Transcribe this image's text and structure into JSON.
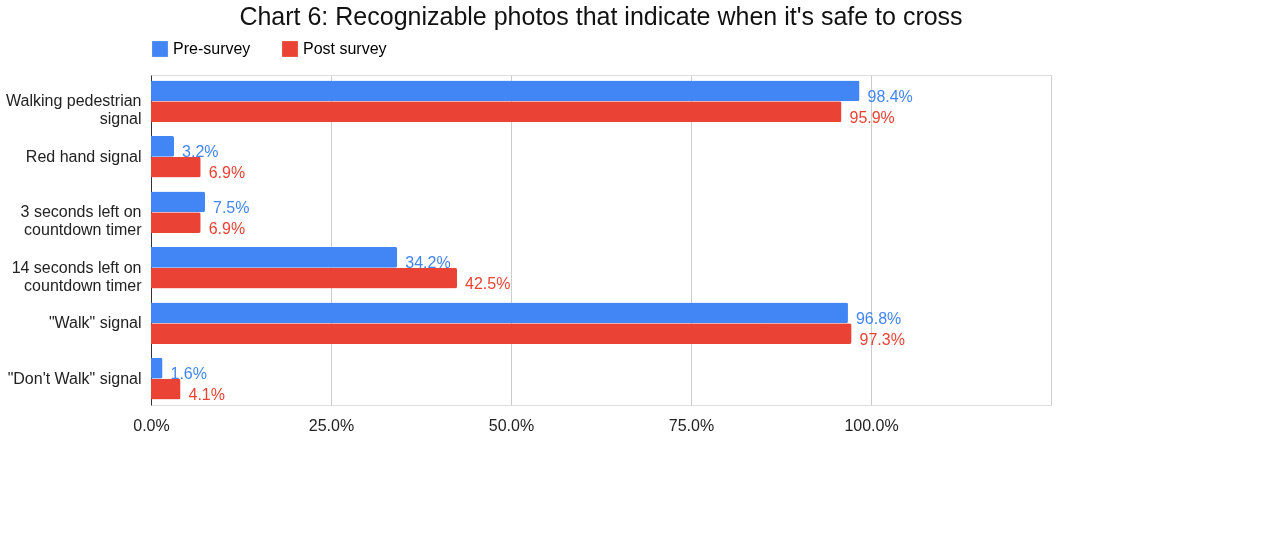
{
  "chart_data": {
    "type": "bar",
    "orientation": "horizontal",
    "title": "Chart 6: Recognizable photos that indicate when it's safe to cross",
    "categories": [
      "Walking pedestrian signal",
      "Red hand signal",
      "3 seconds left on countdown timer",
      "14 seconds left on countdown timer",
      "\"Walk\" signal",
      "\"Don't Walk\" signal"
    ],
    "series": [
      {
        "name": "Pre-survey",
        "color": "#4285f4",
        "values": [
          98.4,
          3.2,
          7.5,
          34.2,
          96.8,
          1.6
        ],
        "value_labels": [
          "98.4%",
          "3.2%",
          "7.5%",
          "34.2%",
          "96.8%",
          "1.6%"
        ]
      },
      {
        "name": "Post survey",
        "color": "#ea4335",
        "values": [
          95.9,
          6.9,
          6.9,
          42.5,
          97.3,
          4.1
        ],
        "value_labels": [
          "95.9%",
          "6.9%",
          "6.9%",
          "42.5%",
          "97.3%",
          "4.1%"
        ]
      }
    ],
    "xlim": [
      0,
      125
    ],
    "xticks": [
      {
        "value": 0,
        "label": "0.0%"
      },
      {
        "value": 25,
        "label": "25.0%"
      },
      {
        "value": 50,
        "label": "50.0%"
      },
      {
        "value": 75,
        "label": "75.0%"
      },
      {
        "value": 100,
        "label": "100.0%"
      },
      {
        "value": 125,
        "label": null
      }
    ],
    "grid": "x",
    "legend": "top"
  }
}
